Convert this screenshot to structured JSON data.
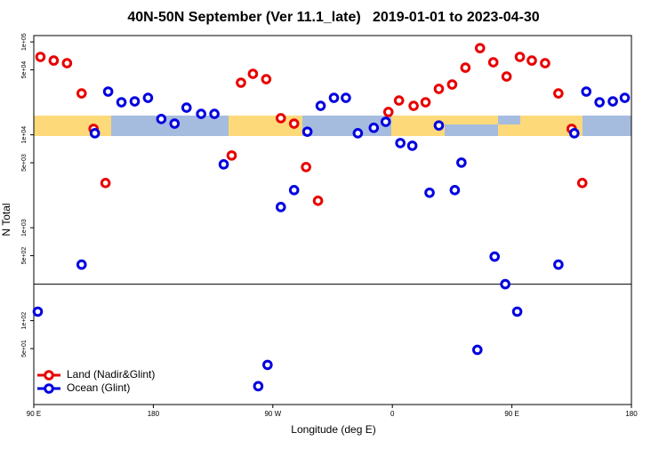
{
  "chart_data": {
    "type": "scatter",
    "title": "40N-50N September (Ver 11.1_late)   2019-01-01 to 2023-04-30",
    "xlabel": "Longitude (deg E)",
    "ylabel": "N Total",
    "xlim": [
      90,
      540
    ],
    "ylim": [
      12.5,
      117000
    ],
    "log_y": true,
    "legend": "bottomleft",
    "xticks": [
      {
        "value": 90,
        "label": "90 E"
      },
      180,
      {
        "value": 270,
        "label": "90 W"
      },
      {
        "value": 360,
        "label": "0"
      },
      {
        "value": 450,
        "label": "90 E"
      },
      {
        "value": 540,
        "label": "180"
      }
    ],
    "yticks": [
      {
        "value": 100000,
        "label": "1e+05"
      },
      {
        "value": 50000,
        "label": "5e+04"
      },
      {
        "value": 10000,
        "label": "1e+04"
      },
      {
        "value": 5000,
        "label": "5e+03"
      },
      {
        "value": 1000,
        "label": "1e+03"
      },
      {
        "value": 500,
        "label": "5e+02"
      },
      {
        "value": 100,
        "label": "1e+02"
      },
      {
        "value": 50,
        "label": "5e+01"
      }
    ],
    "reference_line": 247,
    "series": [
      {
        "name": "Land (Nadir&Glint)",
        "color": "#e80000",
        "x": [
          95,
          105,
          115,
          126,
          135,
          144,
          239,
          246,
          255,
          265,
          276,
          286,
          295,
          304,
          357,
          365,
          376,
          385,
          395,
          405,
          415,
          426,
          436,
          446,
          456,
          465,
          475,
          485,
          495,
          503
        ],
        "values": [
          68900,
          63000,
          59000,
          27900,
          11600,
          3030,
          5990,
          36400,
          45300,
          39700,
          15100,
          13200,
          4500,
          1950,
          17600,
          23400,
          20500,
          22400,
          31200,
          34800,
          52800,
          85700,
          60300,
          42400,
          68900,
          63000,
          59000,
          27900,
          11600,
          3030
        ]
      },
      {
        "name": "Ocean (Glint)",
        "color": "#0000e0",
        "x": [
          93,
          126,
          136,
          146,
          156,
          166,
          176,
          186,
          196,
          205,
          216,
          226,
          233,
          259,
          266,
          276,
          286,
          296,
          306,
          316,
          325,
          334,
          346,
          355,
          366,
          375,
          388,
          395,
          407,
          412,
          424,
          437,
          445,
          454,
          485,
          497,
          506,
          516,
          526,
          535
        ],
        "values": [
          125,
          401,
          10400,
          29200,
          22400,
          22900,
          25000,
          14800,
          13200,
          19600,
          16800,
          16800,
          4810,
          19.7,
          33.4,
          1670,
          2540,
          10800,
          20500,
          25000,
          25000,
          10400,
          11900,
          13800,
          8150,
          7630,
          2380,
          12600,
          2540,
          5020,
          48.5,
          489,
          247,
          125,
          401,
          10400,
          29200,
          22400,
          22900,
          25000
        ]
      }
    ]
  }
}
